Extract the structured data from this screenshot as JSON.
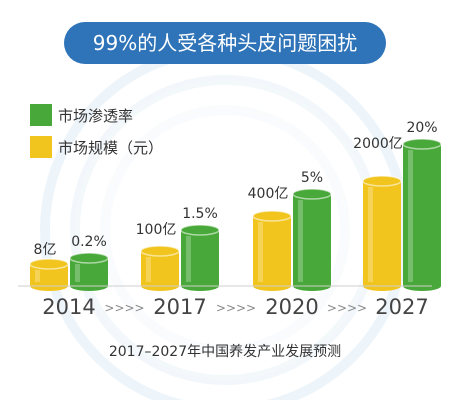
{
  "banner": {
    "text": "99%的人受各种头皮问题困扰"
  },
  "chart_data": {
    "type": "bar",
    "title": "",
    "categories": [
      "2014",
      "2017",
      "2020",
      "2027"
    ],
    "separator": ">>>>",
    "series": [
      {
        "name": "市场规模（元）",
        "values": [
          8,
          100,
          400,
          2000
        ],
        "unit": "亿",
        "labels": [
          "8亿",
          "100亿",
          "400亿",
          "2000亿"
        ],
        "color": "#f1c51e"
      },
      {
        "name": "市场渗透率",
        "values": [
          0.2,
          1.5,
          5,
          20
        ],
        "unit": "%",
        "labels": [
          "0.2%",
          "1.5%",
          "5%",
          "20%"
        ],
        "color": "#49a83a"
      }
    ],
    "legend": {
      "position": "top-left"
    },
    "grid": false
  },
  "caption": {
    "text": "2017–2027年中国养发产业发展预测"
  },
  "colors": {
    "banner_bg": "#2f74b8",
    "banner_text": "#ffffff",
    "text": "#333333",
    "year_text": "#444444",
    "ring": "#e3eef7"
  }
}
